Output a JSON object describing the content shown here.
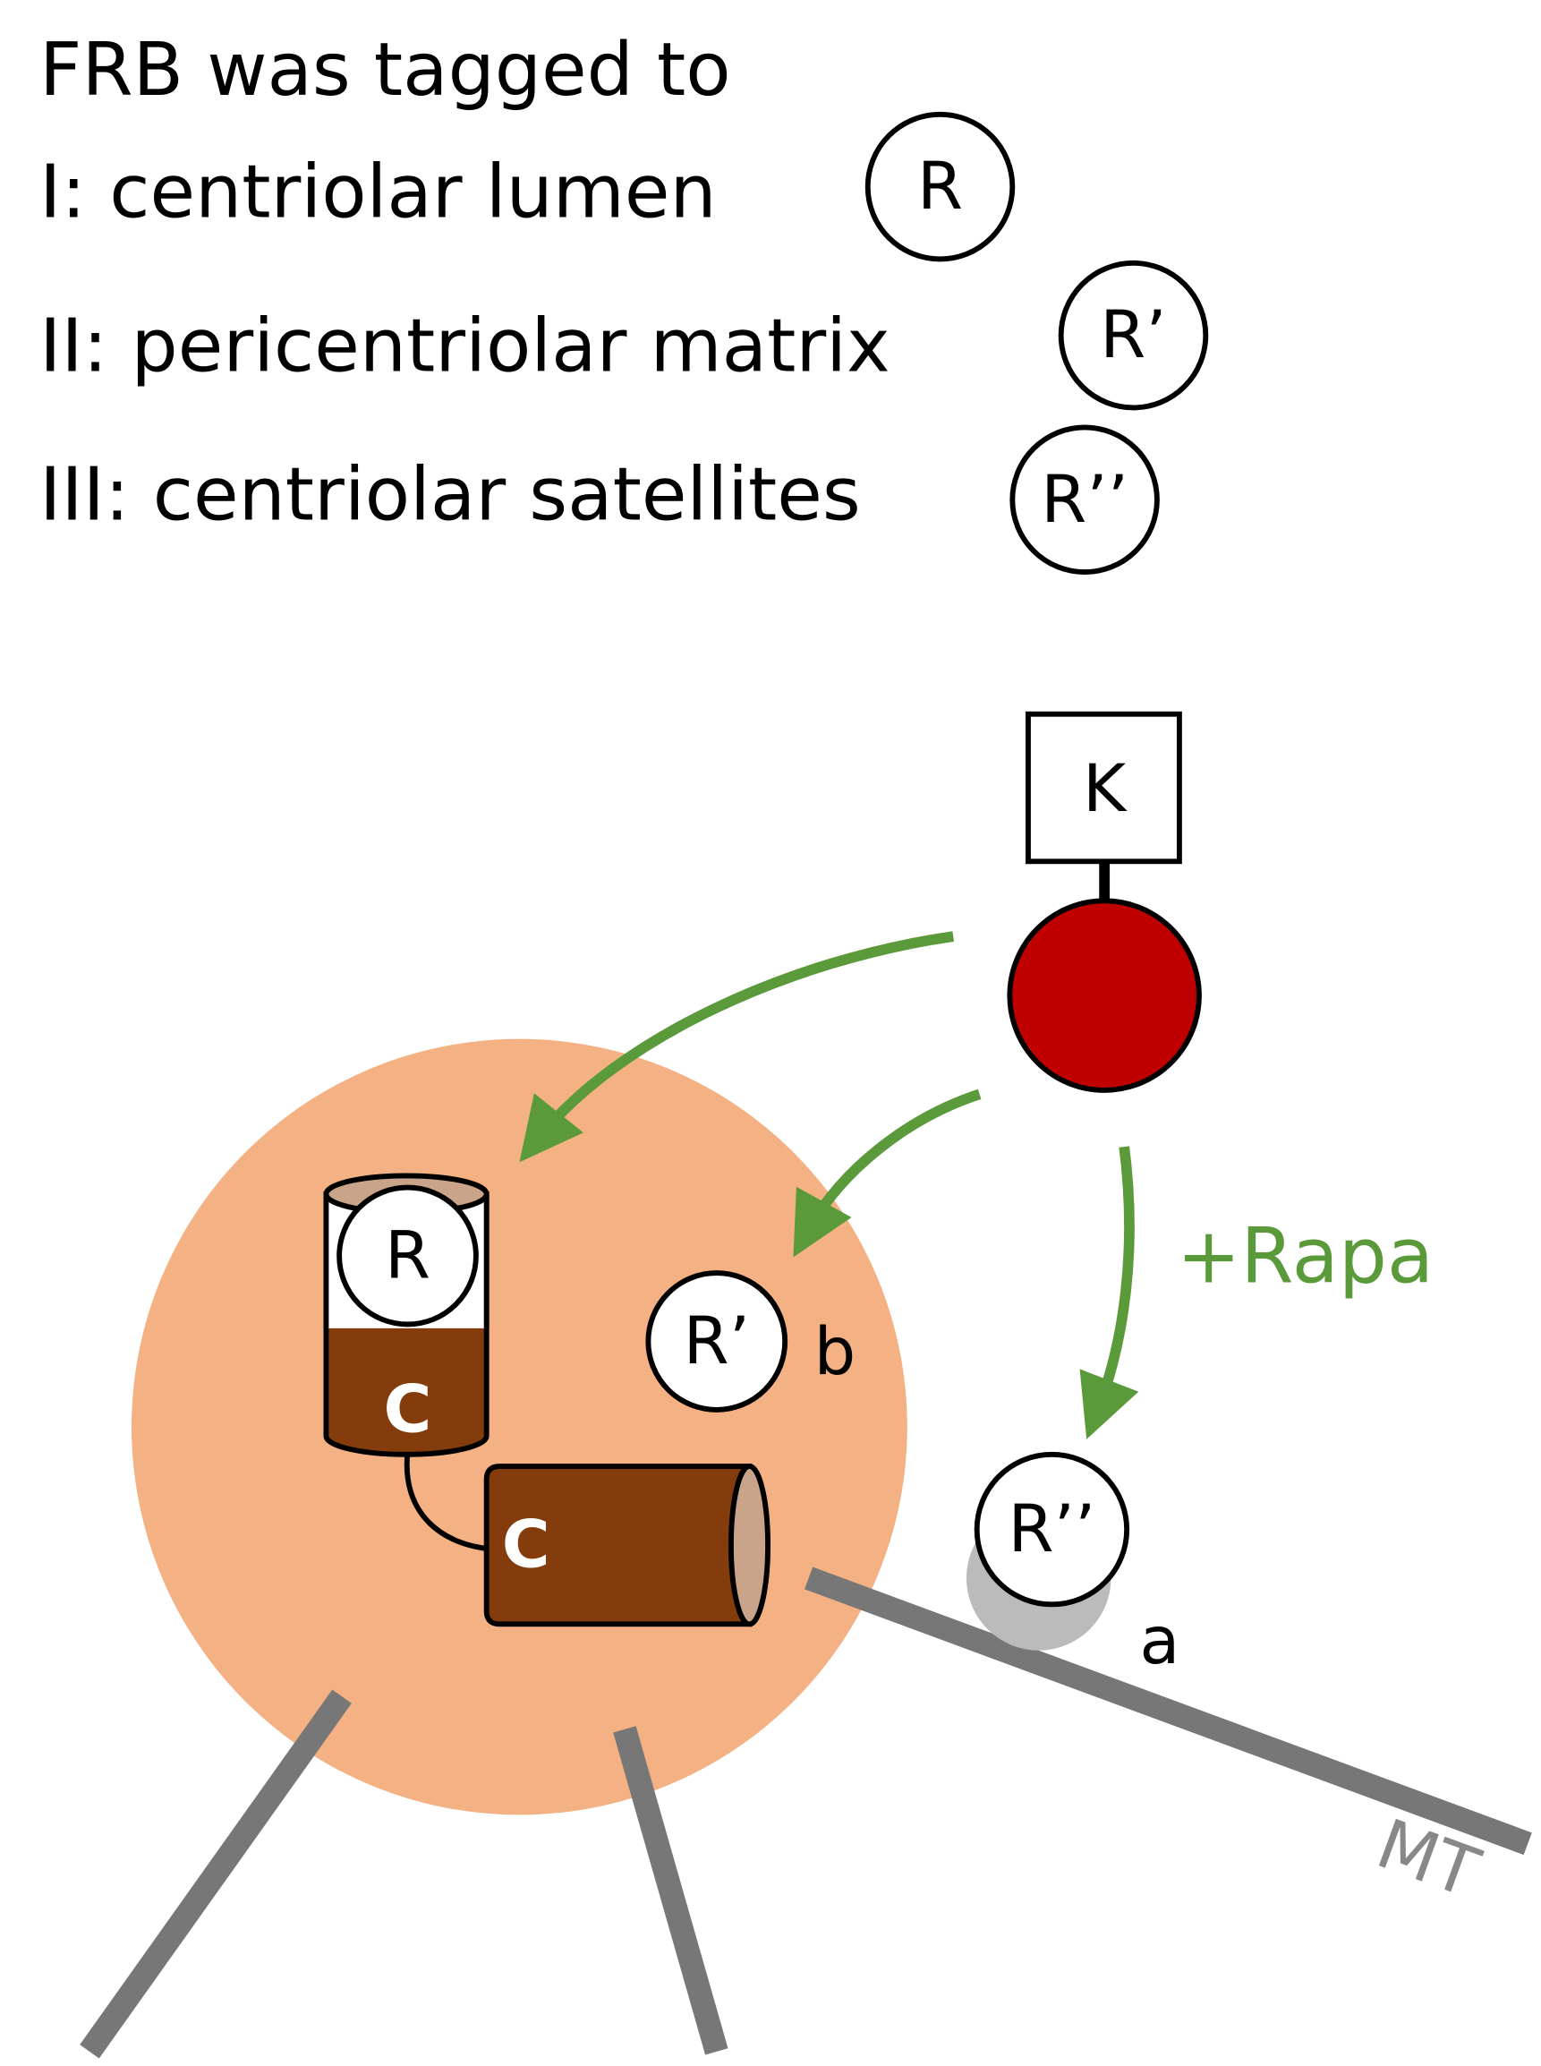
{
  "legend": {
    "title": "FRB was tagged to",
    "items": [
      {
        "label": "I: centriolar lumen",
        "symbol": "R"
      },
      {
        "label": "II: pericentriolar matrix",
        "symbol": "R’"
      },
      {
        "label": "III: centriolar satellites",
        "symbol": "R’’"
      }
    ]
  },
  "diagram": {
    "kinase": "K",
    "treatment": "+Rapa",
    "lumen": "R",
    "pcm": "R’",
    "pcm_tag": "b",
    "satellite": "R’’",
    "satellite_tag": "a",
    "centrioles": [
      "C",
      "C"
    ],
    "microtubule": "MT"
  }
}
